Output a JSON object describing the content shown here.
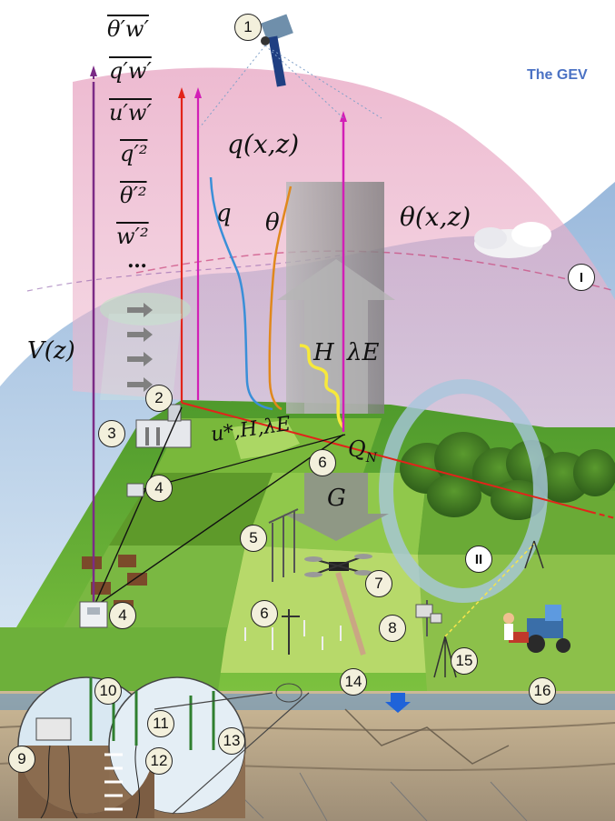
{
  "header": {
    "title_fragment": "The GEV"
  },
  "math_labels": {
    "theta_w": "θ′w′",
    "q_w": "q′w′",
    "u_w": "u′w′",
    "q2": "q′²",
    "theta2": "θ′²",
    "w2": "w′²",
    "ellipsis": "…",
    "wind_profile": "V(z)",
    "q_xz": "q(x,z)",
    "theta_xz": "θ(x,z)",
    "q": "q",
    "theta": "θ",
    "H": "H",
    "lambdaE": "λE",
    "fluxes": "u*,H,λE",
    "QN": "Q",
    "QN_sub": "N",
    "G": "G"
  },
  "markers": {
    "m1": "1",
    "m2": "2",
    "m3": "3",
    "m4a": "4",
    "m4b": "4",
    "m5": "5",
    "m6a": "6",
    "m6b": "6",
    "m7": "7",
    "m8": "8",
    "m9": "9",
    "m10": "10",
    "m11": "11",
    "m12": "12",
    "m13": "13",
    "m14": "14",
    "m15": "15",
    "m16": "16",
    "roman1": "I",
    "roman2": "II"
  },
  "colors": {
    "sky_pink": "#e9a9c4",
    "boundary_layer_blue": "#a9c8e6",
    "field_green": "#6fb53a",
    "field_light": "#b7d96a",
    "flux_arrow_grey": "#9a9a9a",
    "profile_purple": "#7b2b86",
    "profile_magenta": "#d21fb6",
    "profile_red": "#e2231a",
    "q_curve_blue": "#3a8fd8",
    "theta_curve_orange": "#e0881c",
    "title_blue": "#4b72c4"
  }
}
